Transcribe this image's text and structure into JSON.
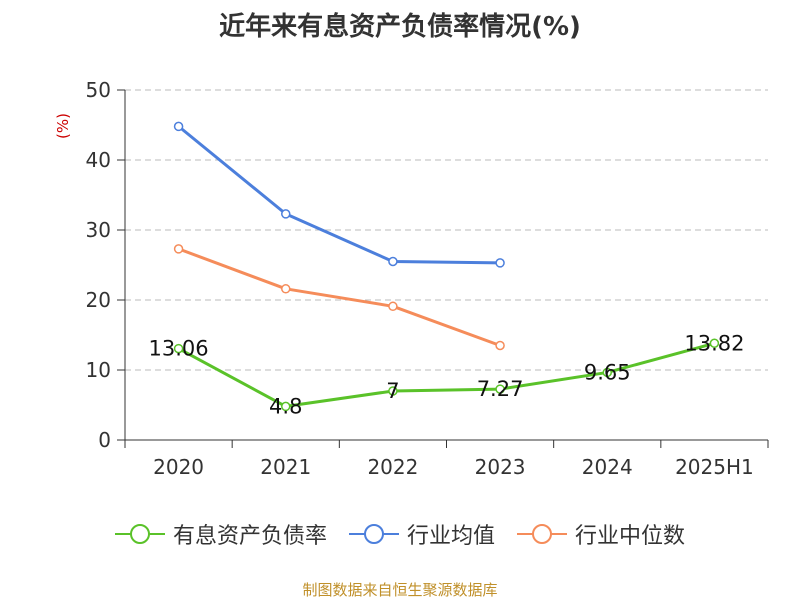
{
  "chart_data": {
    "type": "line",
    "title": "近年来有息资产负债率情况(%)",
    "ylabel": "(%)",
    "categories": [
      "2020",
      "2021",
      "2022",
      "2023",
      "2024",
      "2025H1"
    ],
    "ylim": [
      0,
      50
    ],
    "yticks": [
      0,
      10,
      20,
      30,
      40,
      50
    ],
    "grid": true,
    "legend_position": "bottom",
    "series": [
      {
        "name": "有息资产负债率",
        "color": "#5ac229",
        "values": [
          13.06,
          4.8,
          7,
          7.27,
          9.65,
          13.82
        ],
        "labels": [
          "13.06",
          "4.8",
          "7",
          "7.27",
          "9.65",
          "13.82"
        ]
      },
      {
        "name": "行业均值",
        "color": "#4c7fdc",
        "values": [
          44.8,
          32.3,
          25.5,
          25.3,
          null,
          null
        ]
      },
      {
        "name": "行业中位数",
        "color": "#f58c5a",
        "values": [
          27.3,
          21.6,
          19.1,
          13.5,
          null,
          null
        ]
      }
    ]
  },
  "source": "制图数据来自恒生聚源数据库"
}
